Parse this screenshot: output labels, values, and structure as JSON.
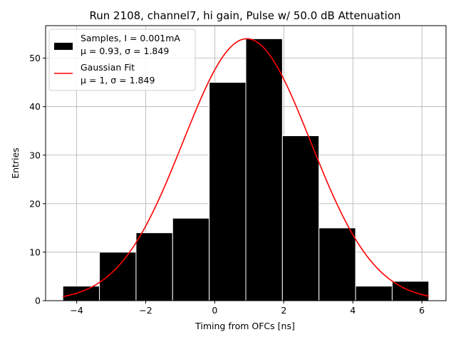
{
  "chart_data": {
    "type": "bar",
    "title": "Run 2108, channel7, hi gain, Pulse w/ 50.0 dB Attenuation",
    "xlabel": "Timing from OFCs [ns]",
    "ylabel": "Entries",
    "xlim": [
      -4.9,
      6.7
    ],
    "ylim": [
      0,
      56.7
    ],
    "xticks": [
      -4,
      -2,
      0,
      2,
      4,
      6
    ],
    "yticks": [
      0,
      10,
      20,
      30,
      40,
      50
    ],
    "grid": true,
    "legend_position": "top-left",
    "histogram": {
      "name": "Samples, I = 0.001mA",
      "stats": "μ = 0.93, σ = 1.849",
      "color": "#000000",
      "bin_edges": [
        -4.4,
        -3.34,
        -2.28,
        -1.22,
        -0.16,
        0.9,
        1.96,
        3.02,
        4.08,
        5.14,
        6.2
      ],
      "counts": [
        3,
        10,
        14,
        17,
        45,
        54,
        34,
        15,
        3,
        4
      ]
    },
    "fit": {
      "name": "Gaussian Fit",
      "stats": "μ = 1, σ = 1.849",
      "color": "#ff0000",
      "mu": 0.93,
      "sigma": 1.849,
      "peak": 54,
      "x_range": [
        -4.4,
        6.2
      ]
    }
  }
}
